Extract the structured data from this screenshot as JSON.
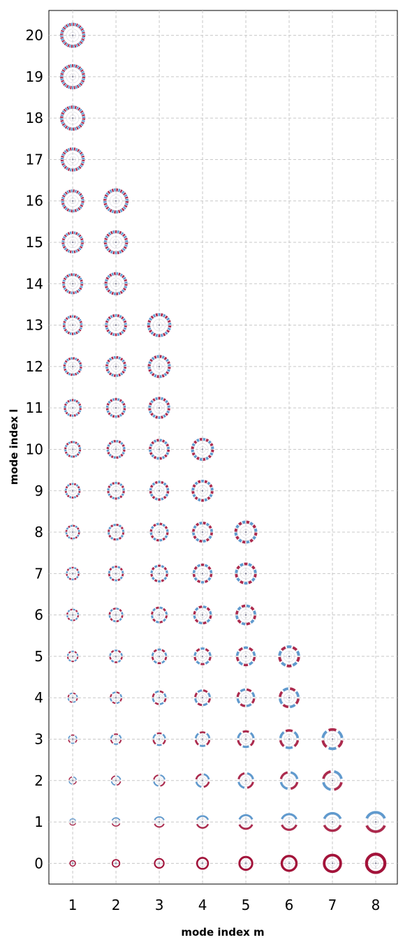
{
  "chart_data": {
    "type": "scatter",
    "xlabel": "mode index m",
    "ylabel": "mode index l",
    "xlim": [
      0.45,
      8.5
    ],
    "ylim": [
      -0.5,
      20.6
    ],
    "xticks": [
      1,
      2,
      3,
      4,
      5,
      6,
      7,
      8
    ],
    "yticks": [
      0,
      1,
      2,
      3,
      4,
      5,
      6,
      7,
      8,
      9,
      10,
      11,
      12,
      13,
      14,
      15,
      16,
      17,
      18,
      19,
      20
    ],
    "grid": true,
    "colors": {
      "positive": "#a3133a",
      "negative": "#4f8fc9",
      "background": "#ffffff",
      "grid": "#c8c8c8"
    },
    "max_l_per_m": [
      {
        "m": 1,
        "max_l": 20
      },
      {
        "m": 2,
        "max_l": 16
      },
      {
        "m": 3,
        "max_l": 13
      },
      {
        "m": 4,
        "max_l": 10
      },
      {
        "m": 5,
        "max_l": 8
      },
      {
        "m": 6,
        "max_l": 5
      },
      {
        "m": 7,
        "max_l": 3
      },
      {
        "m": 8,
        "max_l": 1
      }
    ]
  }
}
